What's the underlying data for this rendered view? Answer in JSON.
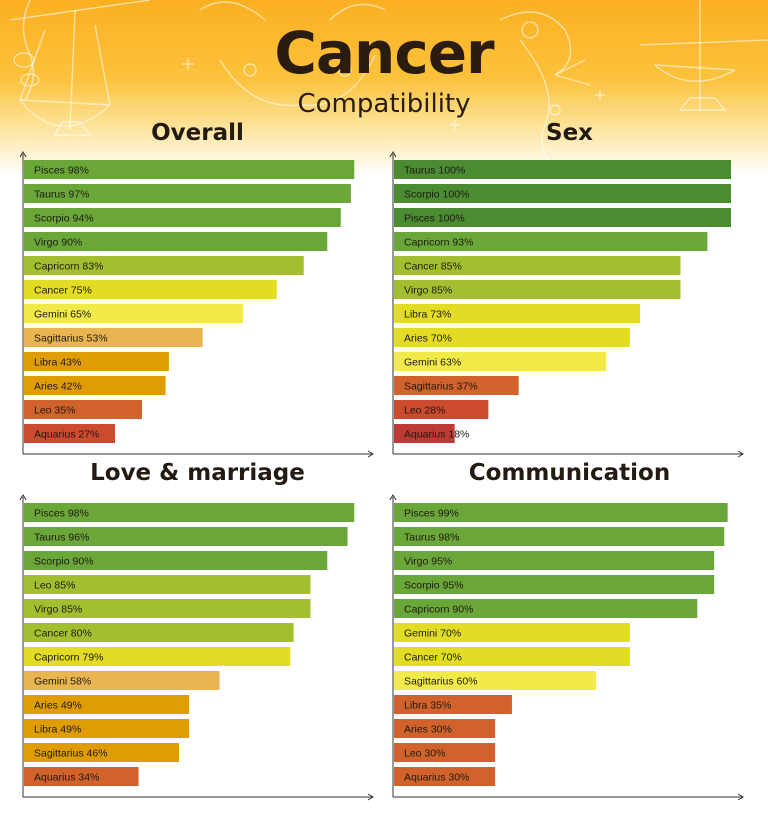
{
  "header": {
    "title": "Cancer",
    "subtitle": "Compatibility",
    "background_colors": [
      "#fbb022",
      "#fcc23c",
      "#fde39a"
    ]
  },
  "chart_data": [
    {
      "type": "bar",
      "orientation": "horizontal",
      "title": "Overall",
      "categories": [
        "Pisces",
        "Taurus",
        "Scorpio",
        "Virgo",
        "Capricorn",
        "Cancer",
        "Gemini",
        "Sagittarius",
        "Libra",
        "Aries",
        "Leo",
        "Aquarius"
      ],
      "values": [
        98,
        97,
        94,
        90,
        83,
        75,
        65,
        53,
        43,
        42,
        35,
        27
      ],
      "colors": [
        "#6aa638",
        "#6aa638",
        "#6aa638",
        "#6aa638",
        "#a3bf30",
        "#e3dc24",
        "#f1ea48",
        "#e8b551",
        "#df9c05",
        "#df9c05",
        "#d1622b",
        "#cc4a2d"
      ],
      "label_format": "{name} {value}%",
      "xlim": [
        0,
        100
      ],
      "grid": false,
      "legend": "none"
    },
    {
      "type": "bar",
      "orientation": "horizontal",
      "title": "Sex",
      "categories": [
        "Taurus",
        "Scorpio",
        "Pisces",
        "Capricorn",
        "Cancer",
        "Virgo",
        "Libra",
        "Aries",
        "Gemini",
        "Sagittarius",
        "Leo",
        "Aquarius"
      ],
      "values": [
        100,
        100,
        100,
        93,
        85,
        85,
        73,
        70,
        63,
        37,
        28,
        18
      ],
      "colors": [
        "#4b8c33",
        "#4b8c33",
        "#4b8c33",
        "#6aa638",
        "#a3bf30",
        "#a3bf30",
        "#e3dc24",
        "#e3dc24",
        "#f1ea48",
        "#d1622b",
        "#cc4a2d",
        "#bc3a33"
      ],
      "label_format": "{name} {value}%",
      "xlim": [
        0,
        100
      ],
      "grid": false,
      "legend": "none"
    },
    {
      "type": "bar",
      "orientation": "horizontal",
      "title": "Love & marriage",
      "categories": [
        "Pisces",
        "Taurus",
        "Scorpio",
        "Leo",
        "Virgo",
        "Cancer",
        "Capricorn",
        "Gemini",
        "Aries",
        "Libra",
        "Sagittarius",
        "Aquarius"
      ],
      "values": [
        98,
        96,
        90,
        85,
        85,
        80,
        79,
        58,
        49,
        49,
        46,
        34
      ],
      "colors": [
        "#6aa638",
        "#6aa638",
        "#6aa638",
        "#a3bf30",
        "#a3bf30",
        "#a3bf30",
        "#e3dc24",
        "#e8b551",
        "#df9c05",
        "#df9c05",
        "#df9c05",
        "#d1622b"
      ],
      "label_format": "{name} {value}%",
      "xlim": [
        0,
        100
      ],
      "grid": false,
      "legend": "none"
    },
    {
      "type": "bar",
      "orientation": "horizontal",
      "title": "Communication",
      "categories": [
        "Pisces",
        "Taurus",
        "Virgo",
        "Scorpio",
        "Capricorn",
        "Gemini",
        "Cancer",
        "Sagittarius",
        "Libra",
        "Aries",
        "Leo",
        "Aquarius"
      ],
      "values": [
        99,
        98,
        95,
        95,
        90,
        70,
        70,
        60,
        35,
        30,
        30,
        30
      ],
      "colors": [
        "#6aa638",
        "#6aa638",
        "#6aa638",
        "#6aa638",
        "#6aa638",
        "#e3dc24",
        "#e3dc24",
        "#f1ea48",
        "#d1622b",
        "#d1622b",
        "#d1622b",
        "#d1622b"
      ],
      "label_format": "{name} {value}%",
      "xlim": [
        0,
        100
      ],
      "grid": false,
      "legend": "none"
    }
  ]
}
